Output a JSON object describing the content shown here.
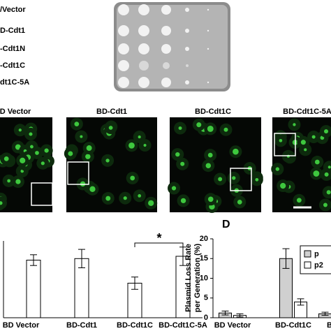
{
  "plate_labels": [
    "/Vector",
    "D-Cdt1",
    "-Cdt1N",
    "-Cdt1C",
    "dt1C-5A"
  ],
  "microscopy_labels": [
    "D Vector",
    "BD-Cdt1",
    "BD-Cdt1C",
    "BD-Cdt1C-5A"
  ],
  "chart_data": [
    {
      "type": "bar",
      "categories": [
        "BD Vector",
        "BD-Cdt1",
        "BD-Cdt1C",
        "BD-Cdt1C-5A"
      ],
      "values": [
        0.75,
        0.77,
        0.45,
        0.8
      ],
      "errors": [
        0.07,
        0.12,
        0.08,
        0.12
      ],
      "color": "#ffffff",
      "ylim": [
        0,
        1
      ],
      "annotation": "*"
    },
    {
      "type": "grouped-bar",
      "panel_label": "D",
      "y_label": [
        "Plasmid Loss Rate",
        "per Generation (%)"
      ],
      "categories": [
        "BD Vector",
        "BD-Cdt1C",
        "BD"
      ],
      "series": [
        {
          "name": "p",
          "color": "#d0d0d0",
          "values": [
            1.2,
            15,
            1.0
          ],
          "errors": [
            0.5,
            2.5,
            0.4
          ]
        },
        {
          "name": "p2",
          "color": "#ffffff",
          "values": [
            0.6,
            4,
            null
          ],
          "errors": [
            0.4,
            0.8,
            null
          ]
        }
      ],
      "ylim": [
        0,
        20
      ],
      "yticks": [
        0,
        5,
        10,
        15,
        20
      ]
    }
  ]
}
